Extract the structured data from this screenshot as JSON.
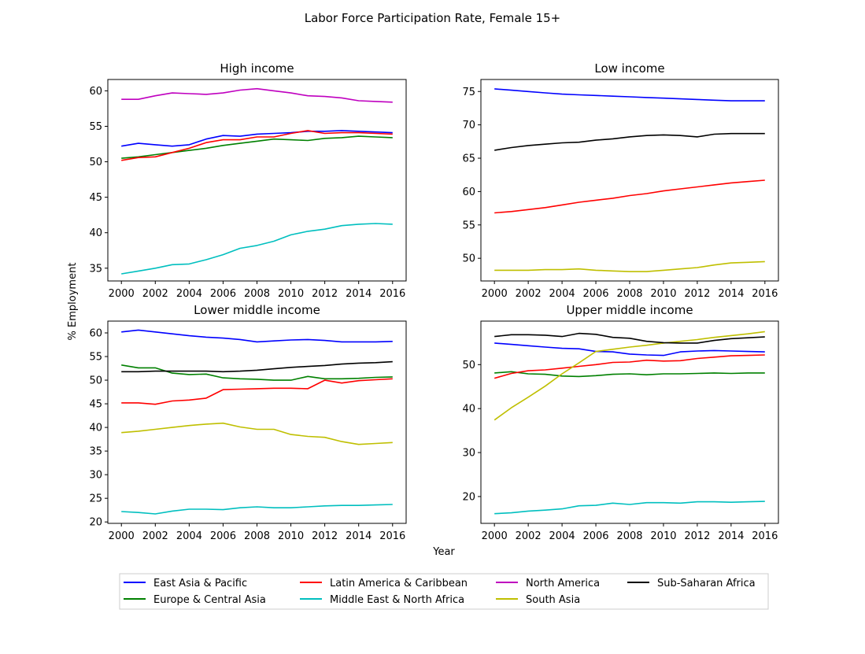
{
  "figure": {
    "title": "Labor Force Participation Rate, Female 15+",
    "xlabel": "Year",
    "ylabel": "% Employment"
  },
  "legend": {
    "placement": "bottom-center",
    "items": [
      {
        "label": "East Asia & Pacific",
        "color": "#0000ff"
      },
      {
        "label": "Europe & Central Asia",
        "color": "#008000"
      },
      {
        "label": "Latin America & Caribbean",
        "color": "#ff0000"
      },
      {
        "label": "Middle East & North Africa",
        "color": "#00bfbf"
      },
      {
        "label": "North America",
        "color": "#bf00bf"
      },
      {
        "label": "South Asia",
        "color": "#bfbf00"
      },
      {
        "label": "Sub-Saharan Africa",
        "color": "#000000"
      }
    ]
  },
  "chart_data": [
    {
      "type": "line",
      "title": "High income",
      "xlabel": "",
      "ylabel": "",
      "x": [
        2000,
        2001,
        2002,
        2003,
        2004,
        2005,
        2006,
        2007,
        2008,
        2009,
        2010,
        2011,
        2012,
        2013,
        2014,
        2015,
        2016
      ],
      "xlim": [
        1999.2,
        2016.8
      ],
      "ylim": [
        33.2,
        61.6
      ],
      "xticks": [
        2000,
        2002,
        2004,
        2006,
        2008,
        2010,
        2012,
        2014,
        2016
      ],
      "yticks": [
        35,
        40,
        45,
        50,
        55,
        60
      ],
      "grid": false,
      "series": [
        {
          "name": "East Asia & Pacific",
          "color": "#0000ff",
          "values": [
            52.2,
            52.6,
            52.4,
            52.2,
            52.4,
            53.2,
            53.7,
            53.6,
            53.9,
            54.0,
            54.1,
            54.3,
            54.3,
            54.4,
            54.3,
            54.2,
            54.1
          ]
        },
        {
          "name": "Europe & Central Asia",
          "color": "#008000",
          "values": [
            50.5,
            50.7,
            51.0,
            51.3,
            51.6,
            51.9,
            52.3,
            52.6,
            52.9,
            53.2,
            53.1,
            53.0,
            53.3,
            53.4,
            53.6,
            53.5,
            53.4
          ]
        },
        {
          "name": "Latin America & Caribbean",
          "color": "#ff0000",
          "values": [
            50.2,
            50.6,
            50.7,
            51.3,
            51.9,
            52.7,
            53.1,
            53.1,
            53.5,
            53.5,
            54.0,
            54.4,
            54.0,
            54.1,
            54.1,
            54.0,
            53.9
          ]
        },
        {
          "name": "Middle East & North Africa",
          "color": "#00bfbf",
          "values": [
            34.2,
            34.6,
            35.0,
            35.5,
            35.6,
            36.2,
            36.9,
            37.8,
            38.2,
            38.8,
            39.7,
            40.2,
            40.5,
            41.0,
            41.2,
            41.3,
            41.2
          ]
        },
        {
          "name": "North America",
          "color": "#bf00bf",
          "values": [
            58.8,
            58.8,
            59.3,
            59.7,
            59.6,
            59.5,
            59.7,
            60.1,
            60.3,
            60.0,
            59.7,
            59.3,
            59.2,
            59.0,
            58.6,
            58.5,
            58.4
          ]
        }
      ]
    },
    {
      "type": "line",
      "title": "Low income",
      "xlabel": "",
      "ylabel": "",
      "x": [
        2000,
        2001,
        2002,
        2003,
        2004,
        2005,
        2006,
        2007,
        2008,
        2009,
        2010,
        2011,
        2012,
        2013,
        2014,
        2015,
        2016
      ],
      "xlim": [
        1999.2,
        2016.8
      ],
      "ylim": [
        46.6,
        76.8
      ],
      "xticks": [
        2000,
        2002,
        2004,
        2006,
        2008,
        2010,
        2012,
        2014,
        2016
      ],
      "yticks": [
        50,
        55,
        60,
        65,
        70,
        75
      ],
      "grid": false,
      "series": [
        {
          "name": "East Asia & Pacific",
          "color": "#0000ff",
          "values": [
            75.4,
            75.2,
            75.0,
            74.8,
            74.6,
            74.5,
            74.4,
            74.3,
            74.2,
            74.1,
            74.0,
            73.9,
            73.8,
            73.7,
            73.6,
            73.6,
            73.6
          ]
        },
        {
          "name": "Latin America & Caribbean",
          "color": "#ff0000",
          "values": [
            56.8,
            57.0,
            57.3,
            57.6,
            58.0,
            58.4,
            58.7,
            59.0,
            59.4,
            59.7,
            60.1,
            60.4,
            60.7,
            61.0,
            61.3,
            61.5,
            61.7
          ]
        },
        {
          "name": "South Asia",
          "color": "#bfbf00",
          "values": [
            48.2,
            48.2,
            48.2,
            48.3,
            48.3,
            48.4,
            48.2,
            48.1,
            48.0,
            48.0,
            48.2,
            48.4,
            48.6,
            49.0,
            49.3,
            49.4,
            49.5
          ]
        },
        {
          "name": "Sub-Saharan Africa",
          "color": "#000000",
          "values": [
            66.2,
            66.6,
            66.9,
            67.1,
            67.3,
            67.4,
            67.7,
            67.9,
            68.2,
            68.4,
            68.5,
            68.4,
            68.2,
            68.6,
            68.7,
            68.7,
            68.7
          ]
        }
      ]
    },
    {
      "type": "line",
      "title": "Lower middle income",
      "xlabel": "",
      "ylabel": "",
      "x": [
        2000,
        2001,
        2002,
        2003,
        2004,
        2005,
        2006,
        2007,
        2008,
        2009,
        2010,
        2011,
        2012,
        2013,
        2014,
        2015,
        2016
      ],
      "xlim": [
        1999.2,
        2016.8
      ],
      "ylim": [
        19.7,
        62.5
      ],
      "xticks": [
        2000,
        2002,
        2004,
        2006,
        2008,
        2010,
        2012,
        2014,
        2016
      ],
      "yticks": [
        20,
        25,
        30,
        35,
        40,
        45,
        50,
        55,
        60
      ],
      "grid": false,
      "series": [
        {
          "name": "East Asia & Pacific",
          "color": "#0000ff",
          "values": [
            60.2,
            60.6,
            60.2,
            59.8,
            59.4,
            59.1,
            58.9,
            58.6,
            58.1,
            58.3,
            58.5,
            58.6,
            58.4,
            58.1,
            58.1,
            58.1,
            58.2
          ]
        },
        {
          "name": "Europe & Central Asia",
          "color": "#008000",
          "values": [
            53.2,
            52.6,
            52.6,
            51.5,
            51.2,
            51.3,
            50.5,
            50.3,
            50.2,
            50.0,
            50.0,
            50.8,
            50.3,
            50.3,
            50.4,
            50.6,
            50.7
          ]
        },
        {
          "name": "Latin America & Caribbean",
          "color": "#ff0000",
          "values": [
            45.2,
            45.2,
            44.9,
            45.6,
            45.8,
            46.2,
            48.0,
            48.1,
            48.2,
            48.3,
            48.3,
            48.2,
            50.0,
            49.4,
            49.9,
            50.1,
            50.3
          ]
        },
        {
          "name": "Middle East & North Africa",
          "color": "#00bfbf",
          "values": [
            22.2,
            22.0,
            21.7,
            22.3,
            22.7,
            22.7,
            22.6,
            23.0,
            23.2,
            23.0,
            23.0,
            23.2,
            23.4,
            23.5,
            23.5,
            23.6,
            23.7
          ]
        },
        {
          "name": "South Asia",
          "color": "#bfbf00",
          "values": [
            38.9,
            39.2,
            39.6,
            40.0,
            40.4,
            40.7,
            40.9,
            40.1,
            39.6,
            39.6,
            38.5,
            38.1,
            37.9,
            37.0,
            36.4,
            36.6,
            36.8
          ]
        },
        {
          "name": "Sub-Saharan Africa",
          "color": "#000000",
          "values": [
            51.8,
            51.8,
            51.9,
            51.9,
            51.9,
            51.9,
            51.8,
            51.9,
            52.1,
            52.4,
            52.7,
            52.9,
            53.1,
            53.4,
            53.6,
            53.7,
            53.9
          ]
        }
      ]
    },
    {
      "type": "line",
      "title": "Upper middle income",
      "xlabel": "",
      "ylabel": "",
      "x": [
        2000,
        2001,
        2002,
        2003,
        2004,
        2005,
        2006,
        2007,
        2008,
        2009,
        2010,
        2011,
        2012,
        2013,
        2014,
        2015,
        2016
      ],
      "xlim": [
        1999.2,
        2016.8
      ],
      "ylim": [
        13.9,
        59.9
      ],
      "xticks": [
        2000,
        2002,
        2004,
        2006,
        2008,
        2010,
        2012,
        2014,
        2016
      ],
      "yticks": [
        20,
        30,
        40,
        50
      ],
      "grid": false,
      "series": [
        {
          "name": "East Asia & Pacific",
          "color": "#0000ff",
          "values": [
            54.9,
            54.6,
            54.3,
            54.0,
            53.7,
            53.6,
            53.0,
            52.9,
            52.4,
            52.2,
            52.1,
            52.9,
            53.1,
            53.2,
            53.1,
            53.0,
            52.9
          ]
        },
        {
          "name": "Europe & Central Asia",
          "color": "#008000",
          "values": [
            48.1,
            48.4,
            47.9,
            47.8,
            47.4,
            47.3,
            47.5,
            47.8,
            47.9,
            47.7,
            47.9,
            47.9,
            48.0,
            48.1,
            48.0,
            48.1,
            48.1
          ]
        },
        {
          "name": "Latin America & Caribbean",
          "color": "#ff0000",
          "values": [
            46.9,
            48.0,
            48.6,
            48.8,
            49.2,
            49.6,
            50.0,
            50.5,
            50.6,
            51.0,
            50.8,
            50.9,
            51.4,
            51.7,
            52.0,
            52.1,
            52.2
          ]
        },
        {
          "name": "Middle East & North Africa",
          "color": "#00bfbf",
          "values": [
            16.1,
            16.3,
            16.7,
            16.9,
            17.2,
            17.9,
            18.0,
            18.5,
            18.2,
            18.6,
            18.6,
            18.5,
            18.8,
            18.8,
            18.7,
            18.8,
            18.9
          ]
        },
        {
          "name": "South Asia",
          "color": "#bfbf00",
          "values": [
            37.4,
            40.2,
            42.6,
            45.1,
            47.9,
            50.4,
            53.0,
            53.5,
            54.0,
            54.4,
            54.9,
            55.3,
            55.7,
            56.2,
            56.6,
            57.0,
            57.5
          ]
        },
        {
          "name": "Sub-Saharan Africa",
          "color": "#000000",
          "values": [
            56.4,
            56.8,
            56.8,
            56.7,
            56.4,
            57.1,
            56.9,
            56.2,
            56.0,
            55.3,
            55.0,
            54.9,
            54.9,
            55.5,
            55.9,
            56.1,
            56.3
          ]
        }
      ]
    }
  ]
}
